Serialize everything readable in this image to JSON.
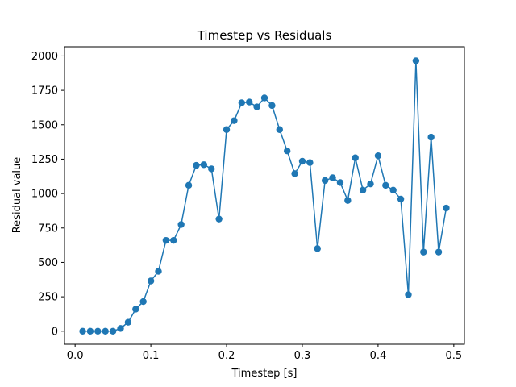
{
  "chart_data": {
    "type": "line",
    "title": "Timestep vs Residuals",
    "xlabel": "Timestep [s]",
    "ylabel": "Residual value",
    "xlim": [
      -0.014,
      0.514
    ],
    "ylim": [
      -95,
      2067
    ],
    "xticks": [
      0.0,
      0.1,
      0.2,
      0.3,
      0.4,
      0.5
    ],
    "xtick_labels": [
      "0.0",
      "0.1",
      "0.2",
      "0.3",
      "0.4",
      "0.5"
    ],
    "yticks": [
      0,
      250,
      500,
      750,
      1000,
      1250,
      1500,
      1750,
      2000
    ],
    "ytick_labels": [
      "0",
      "250",
      "500",
      "750",
      "1000",
      "1250",
      "1500",
      "1750",
      "2000"
    ],
    "grid": false,
    "series": [
      {
        "color": "#1f77b4",
        "marker": "circle",
        "x": [
          0.01,
          0.02,
          0.03,
          0.04,
          0.05,
          0.06,
          0.07,
          0.08,
          0.09,
          0.1,
          0.11,
          0.12,
          0.13,
          0.14,
          0.15,
          0.16,
          0.17,
          0.18,
          0.19,
          0.2,
          0.21,
          0.22,
          0.23,
          0.24,
          0.25,
          0.26,
          0.27,
          0.28,
          0.29,
          0.3,
          0.31,
          0.32,
          0.33,
          0.34,
          0.35,
          0.36,
          0.37,
          0.38,
          0.39,
          0.4,
          0.41,
          0.42,
          0.43,
          0.44,
          0.45,
          0.46,
          0.47,
          0.48,
          0.49
        ],
        "y": [
          0,
          0,
          0,
          0,
          0,
          20,
          65,
          160,
          215,
          365,
          435,
          660,
          660,
          775,
          1060,
          1205,
          1210,
          1180,
          815,
          1465,
          1530,
          1660,
          1665,
          1630,
          1695,
          1640,
          1465,
          1310,
          1145,
          1235,
          1225,
          600,
          1095,
          1115,
          1080,
          950,
          1260,
          1025,
          1070,
          1275,
          1060,
          1025,
          960,
          265,
          1965,
          575,
          1410,
          575,
          895
        ]
      }
    ]
  }
}
